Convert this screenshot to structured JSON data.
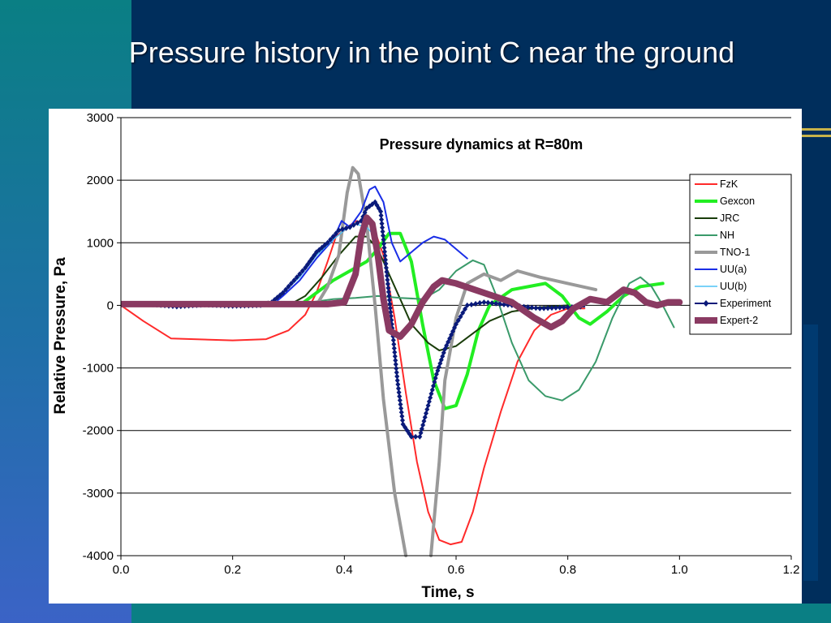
{
  "slide": {
    "title": "Pressure history in the point C near the ground"
  },
  "chart_data": {
    "type": "line",
    "title": "Pressure dynamics at R=80m",
    "xlabel": "Time, s",
    "ylabel": "Relative Pressure, Pa",
    "xlim": [
      0,
      1.2
    ],
    "ylim": [
      -4000,
      3000
    ],
    "x_ticks": [
      "0.0",
      "0.2",
      "0.4",
      "0.6",
      "0.8",
      "1.0",
      "1.2"
    ],
    "y_ticks": [
      "3000",
      "2000",
      "1000",
      "0",
      "-1000",
      "-2000",
      "-3000",
      "-4000"
    ],
    "grid": "horizontal",
    "legend_position": "right",
    "series": [
      {
        "name": "FzK",
        "color": "#ff2a2a",
        "width": 2,
        "points": [
          [
            0,
            0
          ],
          [
            0.04,
            -250
          ],
          [
            0.09,
            -530
          ],
          [
            0.2,
            -560
          ],
          [
            0.26,
            -540
          ],
          [
            0.3,
            -400
          ],
          [
            0.33,
            -150
          ],
          [
            0.35,
            200
          ],
          [
            0.37,
            700
          ],
          [
            0.385,
            1100
          ],
          [
            0.4,
            1200
          ],
          [
            0.42,
            1350
          ],
          [
            0.45,
            1300
          ],
          [
            0.47,
            800
          ],
          [
            0.49,
            -200
          ],
          [
            0.51,
            -1400
          ],
          [
            0.53,
            -2500
          ],
          [
            0.55,
            -3300
          ],
          [
            0.57,
            -3750
          ],
          [
            0.59,
            -3820
          ],
          [
            0.61,
            -3780
          ],
          [
            0.63,
            -3300
          ],
          [
            0.65,
            -2600
          ],
          [
            0.68,
            -1700
          ],
          [
            0.71,
            -900
          ],
          [
            0.74,
            -400
          ],
          [
            0.77,
            -150
          ],
          [
            0.8,
            -50
          ],
          [
            0.83,
            -50
          ]
        ]
      },
      {
        "name": "Gexcon",
        "color": "#22ee22",
        "width": 4,
        "points": [
          [
            0.32,
            0
          ],
          [
            0.35,
            200
          ],
          [
            0.38,
            400
          ],
          [
            0.41,
            550
          ],
          [
            0.44,
            700
          ],
          [
            0.46,
            900
          ],
          [
            0.48,
            1150
          ],
          [
            0.5,
            1150
          ],
          [
            0.52,
            700
          ],
          [
            0.54,
            -300
          ],
          [
            0.56,
            -1200
          ],
          [
            0.58,
            -1650
          ],
          [
            0.6,
            -1600
          ],
          [
            0.62,
            -1100
          ],
          [
            0.64,
            -400
          ],
          [
            0.66,
            0
          ],
          [
            0.7,
            250
          ],
          [
            0.76,
            350
          ],
          [
            0.79,
            150
          ],
          [
            0.82,
            -200
          ],
          [
            0.84,
            -300
          ],
          [
            0.87,
            -100
          ],
          [
            0.9,
            150
          ],
          [
            0.93,
            300
          ],
          [
            0.97,
            350
          ]
        ]
      },
      {
        "name": "JRC",
        "color": "#1a3d0a",
        "width": 2,
        "points": [
          [
            0.3,
            0
          ],
          [
            0.33,
            150
          ],
          [
            0.36,
            450
          ],
          [
            0.39,
            800
          ],
          [
            0.42,
            1100
          ],
          [
            0.44,
            1100
          ],
          [
            0.46,
            900
          ],
          [
            0.48,
            500
          ],
          [
            0.5,
            100
          ],
          [
            0.52,
            -300
          ],
          [
            0.55,
            -600
          ],
          [
            0.57,
            -720
          ],
          [
            0.6,
            -650
          ],
          [
            0.63,
            -450
          ],
          [
            0.66,
            -250
          ],
          [
            0.7,
            -100
          ],
          [
            0.75,
            -30
          ],
          [
            0.8,
            0
          ]
        ]
      },
      {
        "name": "NH",
        "color": "#3a9a6a",
        "width": 2,
        "points": [
          [
            0.3,
            0
          ],
          [
            0.38,
            100
          ],
          [
            0.42,
            120
          ],
          [
            0.46,
            150
          ],
          [
            0.5,
            120
          ],
          [
            0.54,
            100
          ],
          [
            0.57,
            250
          ],
          [
            0.6,
            550
          ],
          [
            0.63,
            720
          ],
          [
            0.65,
            650
          ],
          [
            0.67,
            200
          ],
          [
            0.7,
            -600
          ],
          [
            0.73,
            -1200
          ],
          [
            0.76,
            -1450
          ],
          [
            0.79,
            -1520
          ],
          [
            0.82,
            -1350
          ],
          [
            0.85,
            -900
          ],
          [
            0.88,
            -200
          ],
          [
            0.91,
            350
          ],
          [
            0.93,
            450
          ],
          [
            0.95,
            300
          ],
          [
            0.97,
            0
          ],
          [
            0.99,
            -350
          ]
        ]
      },
      {
        "name": "TNO-1",
        "color": "#999999",
        "width": 4,
        "points": [
          [
            0.35,
            0
          ],
          [
            0.37,
            300
          ],
          [
            0.39,
            800
          ],
          [
            0.405,
            1800
          ],
          [
            0.415,
            2200
          ],
          [
            0.425,
            2100
          ],
          [
            0.44,
            1300
          ],
          [
            0.455,
            0
          ],
          [
            0.47,
            -1500
          ],
          [
            0.49,
            -3000
          ],
          [
            0.51,
            -4000
          ]
        ]
      },
      {
        "name": "TNO-1b",
        "color": "#999999",
        "width": 4,
        "points": [
          [
            0.555,
            -4000
          ],
          [
            0.57,
            -2500
          ],
          [
            0.58,
            -1200
          ],
          [
            0.6,
            -200
          ],
          [
            0.62,
            350
          ],
          [
            0.65,
            500
          ],
          [
            0.68,
            400
          ],
          [
            0.71,
            550
          ],
          [
            0.75,
            450
          ],
          [
            0.8,
            350
          ],
          [
            0.85,
            250
          ]
        ]
      },
      {
        "name": "UU(a)",
        "color": "#1a2ee6",
        "width": 2,
        "points": [
          [
            0.27,
            0
          ],
          [
            0.29,
            150
          ],
          [
            0.32,
            400
          ],
          [
            0.35,
            750
          ],
          [
            0.38,
            1050
          ],
          [
            0.395,
            1350
          ],
          [
            0.41,
            1250
          ],
          [
            0.43,
            1500
          ],
          [
            0.445,
            1850
          ],
          [
            0.455,
            1900
          ],
          [
            0.47,
            1650
          ],
          [
            0.485,
            1000
          ],
          [
            0.5,
            700
          ],
          [
            0.52,
            850
          ],
          [
            0.54,
            1000
          ],
          [
            0.56,
            1100
          ],
          [
            0.58,
            1050
          ],
          [
            0.6,
            900
          ],
          [
            0.62,
            750
          ]
        ]
      },
      {
        "name": "UU(b)",
        "color": "#4fc3f7",
        "width": 1.5,
        "points": [
          [
            0.27,
            0
          ],
          [
            0.29,
            200
          ],
          [
            0.32,
            450
          ],
          [
            0.35,
            800
          ],
          [
            0.38,
            1050
          ],
          [
            0.4,
            1200
          ],
          [
            0.42,
            1300
          ],
          [
            0.44,
            1250
          ],
          [
            0.45,
            1150
          ]
        ]
      },
      {
        "name": "Experiment",
        "color": "#0a1a7a",
        "width": 2,
        "markers": true,
        "points": [
          [
            0,
            20
          ],
          [
            0.05,
            20
          ],
          [
            0.1,
            -20
          ],
          [
            0.15,
            10
          ],
          [
            0.2,
            -10
          ],
          [
            0.25,
            0
          ],
          [
            0.27,
            50
          ],
          [
            0.29,
            200
          ],
          [
            0.31,
            400
          ],
          [
            0.33,
            600
          ],
          [
            0.35,
            850
          ],
          [
            0.37,
            1000
          ],
          [
            0.39,
            1200
          ],
          [
            0.41,
            1250
          ],
          [
            0.43,
            1350
          ],
          [
            0.44,
            1550
          ],
          [
            0.455,
            1650
          ],
          [
            0.465,
            1500
          ],
          [
            0.475,
            600
          ],
          [
            0.485,
            -300
          ],
          [
            0.495,
            -1200
          ],
          [
            0.505,
            -1900
          ],
          [
            0.52,
            -2100
          ],
          [
            0.535,
            -2100
          ],
          [
            0.55,
            -1600
          ],
          [
            0.565,
            -1100
          ],
          [
            0.58,
            -700
          ],
          [
            0.6,
            -300
          ],
          [
            0.62,
            0
          ],
          [
            0.65,
            50
          ],
          [
            0.7,
            0
          ],
          [
            0.75,
            -50
          ],
          [
            0.8,
            -30
          ],
          [
            0.83,
            -20
          ]
        ]
      },
      {
        "name": "Expert-2",
        "color": "#8a3a62",
        "width": 8,
        "points": [
          [
            0,
            20
          ],
          [
            0.1,
            20
          ],
          [
            0.2,
            20
          ],
          [
            0.3,
            20
          ],
          [
            0.37,
            20
          ],
          [
            0.4,
            50
          ],
          [
            0.42,
            500
          ],
          [
            0.43,
            1100
          ],
          [
            0.44,
            1400
          ],
          [
            0.45,
            1300
          ],
          [
            0.46,
            800
          ],
          [
            0.47,
            100
          ],
          [
            0.48,
            -400
          ],
          [
            0.5,
            -500
          ],
          [
            0.52,
            -300
          ],
          [
            0.54,
            50
          ],
          [
            0.56,
            300
          ],
          [
            0.575,
            400
          ],
          [
            0.6,
            350
          ],
          [
            0.65,
            200
          ],
          [
            0.7,
            50
          ],
          [
            0.74,
            -200
          ],
          [
            0.77,
            -350
          ],
          [
            0.79,
            -250
          ],
          [
            0.81,
            -50
          ],
          [
            0.84,
            100
          ],
          [
            0.87,
            50
          ],
          [
            0.9,
            250
          ],
          [
            0.92,
            200
          ],
          [
            0.94,
            50
          ],
          [
            0.96,
            0
          ],
          [
            0.98,
            50
          ],
          [
            1.0,
            50
          ]
        ]
      }
    ],
    "legend": [
      {
        "name": "FzK",
        "color": "#ff2a2a",
        "width": 2
      },
      {
        "name": "Gexcon",
        "color": "#22ee22",
        "width": 4
      },
      {
        "name": "JRC",
        "color": "#1a3d0a",
        "width": 2
      },
      {
        "name": "NH",
        "color": "#3a9a6a",
        "width": 2
      },
      {
        "name": "TNO-1",
        "color": "#999999",
        "width": 4
      },
      {
        "name": "UU(a)",
        "color": "#1a2ee6",
        "width": 2
      },
      {
        "name": "UU(b)",
        "color": "#4fc3f7",
        "width": 1.5
      },
      {
        "name": "Experiment",
        "color": "#0a1a7a",
        "width": 2,
        "markers": true
      },
      {
        "name": "Expert-2",
        "color": "#8a3a62",
        "width": 8
      }
    ]
  }
}
